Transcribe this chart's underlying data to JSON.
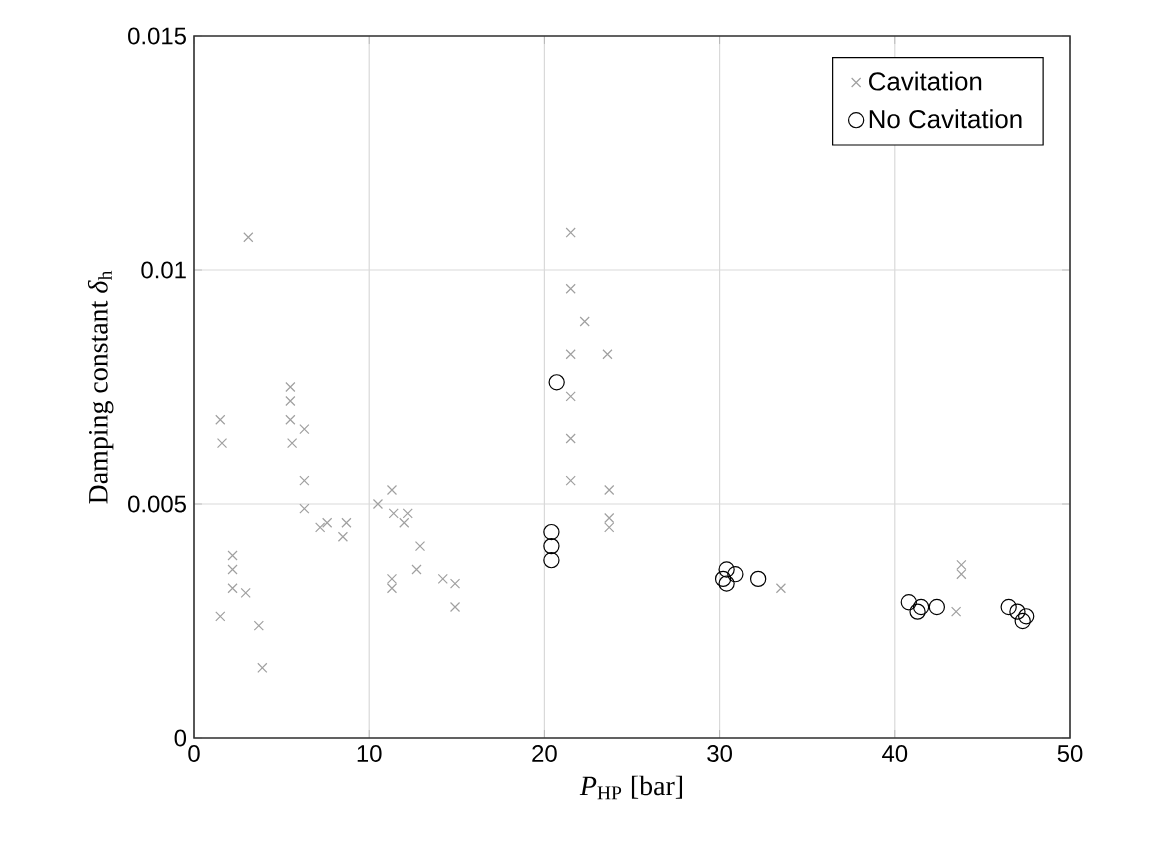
{
  "chart_data": {
    "type": "scatter",
    "xlabel": "*P*$_{HP}$ [bar]",
    "ylabel": "Damping constant *δ*$_{h}$",
    "xlim": [
      0,
      50
    ],
    "ylim": [
      0,
      0.015
    ],
    "xticks": [
      0,
      10,
      20,
      30,
      40,
      50
    ],
    "yticks": [
      0,
      0.005,
      0.01,
      0.015
    ],
    "grid": true,
    "legend": "top right",
    "series": [
      {
        "name": "Cavitation",
        "color": "#a0a0a0",
        "marker": "cross",
        "x": [
          3.1,
          1.5,
          1.6,
          5.5,
          5.5,
          5.5,
          6.3,
          5.6,
          6.3,
          6.3,
          7.2,
          7.6,
          8.7,
          8.5,
          10.5,
          11.3,
          11.4,
          12.2,
          12.0,
          12.9,
          12.7,
          14.2,
          14.9,
          14.9,
          11.3,
          11.3,
          2.2,
          2.2,
          2.2,
          2.95,
          1.5,
          3.7,
          3.9,
          21.5,
          21.5,
          22.3,
          21.5,
          23.6,
          21.5,
          21.5,
          21.5,
          23.7,
          23.7,
          23.7,
          33.5,
          43.8,
          43.8,
          43.5
        ],
        "values": [
          0.0107,
          0.0068,
          0.0063,
          0.0075,
          0.0072,
          0.0068,
          0.0066,
          0.0063,
          0.0055,
          0.0049,
          0.0045,
          0.0046,
          0.0046,
          0.0043,
          0.005,
          0.0053,
          0.0048,
          0.0048,
          0.0046,
          0.0041,
          0.0036,
          0.0034,
          0.0033,
          0.0028,
          0.0034,
          0.0032,
          0.0039,
          0.0036,
          0.0032,
          0.0031,
          0.0026,
          0.0024,
          0.0015,
          0.0108,
          0.0096,
          0.0089,
          0.0082,
          0.0082,
          0.0073,
          0.0064,
          0.0055,
          0.0053,
          0.0047,
          0.0045,
          0.0032,
          0.0037,
          0.0035,
          0.0027
        ]
      },
      {
        "name": "No Cavitation",
        "color": "#000000",
        "marker": "circle",
        "x": [
          20.7,
          20.4,
          20.4,
          20.4,
          30.4,
          30.2,
          30.9,
          32.2,
          30.4,
          40.8,
          41.5,
          42.4,
          41.3,
          46.5,
          47.0,
          47.3,
          47.5
        ],
        "values": [
          0.0076,
          0.0044,
          0.0041,
          0.0038,
          0.0036,
          0.0034,
          0.0035,
          0.0034,
          0.0033,
          0.0029,
          0.0028,
          0.0028,
          0.0027,
          0.0028,
          0.0027,
          0.0025,
          0.0026
        ]
      }
    ]
  }
}
